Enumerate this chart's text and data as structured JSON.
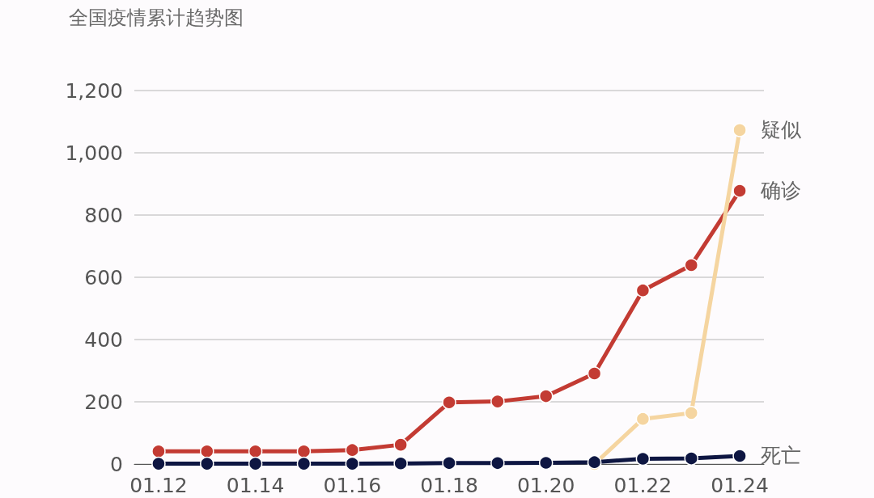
{
  "chart_data": {
    "type": "line",
    "title": "全国疫情累计趋势图",
    "categories": [
      "01.12",
      null,
      "01.14",
      null,
      "01.16",
      null,
      "01.18",
      null,
      "01.20",
      null,
      "01.22",
      null,
      "01.24"
    ],
    "series": [
      {
        "name": "确诊",
        "color": "#c33b33",
        "values": [
          41,
          41,
          41,
          41,
          45,
          62,
          198,
          201,
          218,
          291,
          558,
          639,
          878
        ]
      },
      {
        "name": "疑似",
        "color": "#f5d5a0",
        "values": [
          null,
          null,
          null,
          null,
          null,
          null,
          null,
          null,
          null,
          0,
          145,
          164,
          1073
        ]
      },
      {
        "name": "死亡",
        "color": "#0e1642",
        "values": [
          1,
          1,
          1,
          1,
          1,
          2,
          3,
          3,
          4,
          6,
          17,
          18,
          26
        ]
      }
    ],
    "ylim": [
      0,
      1200
    ],
    "yticks": [
      0,
      200,
      400,
      600,
      800,
      {
        "value": 1000,
        "label": "1,000"
      },
      {
        "value": 1200,
        "label": "1,200"
      }
    ],
    "grid": "y",
    "marker": "circle",
    "line_style": "solid"
  }
}
